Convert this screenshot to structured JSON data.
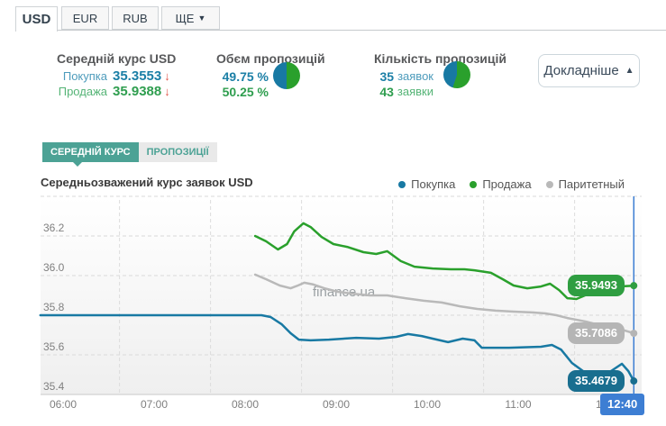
{
  "tabs": [
    {
      "label": "USD",
      "active": true
    },
    {
      "label": "EUR",
      "active": false
    },
    {
      "label": "RUB",
      "active": false
    },
    {
      "label": "ЩЕ",
      "caret": "▼",
      "active": false
    }
  ],
  "stats": {
    "avg": {
      "title": "Середній курс USD",
      "buy_label": "Покупка",
      "buy_value": "35.3553",
      "buy_trend": "↓",
      "sell_label": "Продажа",
      "sell_value": "35.9388",
      "sell_trend": "↓"
    },
    "volume": {
      "title": "Обєм пропозицій",
      "buy_pct": "49.75 %",
      "sell_pct": "50.25 %",
      "buy_share": 49.75,
      "sell_share": 50.25
    },
    "count": {
      "title": "Кількість пропозицій",
      "buy_num": "35",
      "buy_word": "заявок",
      "sell_num": "43",
      "sell_word": "заявки",
      "buy_share": 44.9,
      "sell_share": 55.1
    },
    "details_button": "Докладніше",
    "details_caret": "▲"
  },
  "subtabs": [
    {
      "label": "СЕРЕДНІЙ КУРС",
      "active": true
    },
    {
      "label": "ПРОПОЗИЦІЇ",
      "active": false
    }
  ],
  "watermark": "finance.ua",
  "colors": {
    "buy": "#1879a3",
    "sell": "#2aa02c",
    "parity": "#b9b9b9",
    "crosshair": "#3d7ed3",
    "red_arrow": "#e2574c",
    "teal": "#4ca295"
  },
  "chart_data": {
    "type": "line",
    "title": "Середньозважений курс заявок USD",
    "xlabel": "",
    "ylabel": "",
    "ylim": [
      35.35,
      36.42
    ],
    "grid": true,
    "legend_position": "top-right",
    "yticks": [
      35.4,
      35.6,
      35.8,
      36.0,
      36.2
    ],
    "ygrid": [
      35.6,
      35.8,
      36.0,
      36.2,
      36.4
    ],
    "baseline_value": 35.4,
    "xticks": [
      {
        "label": "06:00",
        "h": 6
      },
      {
        "label": "07:00",
        "h": 7
      },
      {
        "label": "08:00",
        "h": 8
      },
      {
        "label": "09:00",
        "h": 9
      },
      {
        "label": "10:00",
        "h": 10
      },
      {
        "label": "11:00",
        "h": 11
      },
      {
        "label": "12:00",
        "h": 12
      }
    ],
    "xgrid_hours": [
      6.62,
      7.62,
      8.62,
      9.62,
      10.62,
      11.62
    ],
    "legend": [
      {
        "label": "Покупка",
        "color": "#1879a3"
      },
      {
        "label": "Продажа",
        "color": "#2aa02c"
      },
      {
        "label": "Паритетный",
        "color": "#b9b9b9"
      }
    ],
    "series": [
      {
        "name": "buy",
        "label": "Покупка",
        "color": "#1879a3",
        "points": [
          [
            5.75,
            35.8
          ],
          [
            8.18,
            35.8
          ],
          [
            8.28,
            35.791
          ],
          [
            8.4,
            35.755
          ],
          [
            8.5,
            35.709
          ],
          [
            8.59,
            35.677
          ],
          [
            8.72,
            35.673
          ],
          [
            8.92,
            35.677
          ],
          [
            9.22,
            35.686
          ],
          [
            9.47,
            35.682
          ],
          [
            9.66,
            35.691
          ],
          [
            9.79,
            35.705
          ],
          [
            9.94,
            35.695
          ],
          [
            10.06,
            35.682
          ],
          [
            10.23,
            35.664
          ],
          [
            10.39,
            35.682
          ],
          [
            10.52,
            35.673
          ],
          [
            10.6,
            35.636
          ],
          [
            10.9,
            35.636
          ],
          [
            11.25,
            35.641
          ],
          [
            11.37,
            35.65
          ],
          [
            11.47,
            35.627
          ],
          [
            11.59,
            35.559
          ],
          [
            11.74,
            35.509
          ],
          [
            11.89,
            35.491
          ],
          [
            12.02,
            35.518
          ],
          [
            12.14,
            35.555
          ],
          [
            12.21,
            35.518
          ],
          [
            12.27,
            35.468
          ]
        ]
      },
      {
        "name": "sell",
        "label": "Продажа",
        "color": "#2aa02c",
        "points": [
          [
            8.11,
            36.2
          ],
          [
            8.23,
            36.173
          ],
          [
            8.36,
            36.132
          ],
          [
            8.46,
            36.159
          ],
          [
            8.54,
            36.223
          ],
          [
            8.64,
            36.264
          ],
          [
            8.72,
            36.245
          ],
          [
            8.84,
            36.195
          ],
          [
            8.97,
            36.159
          ],
          [
            9.12,
            36.145
          ],
          [
            9.3,
            36.118
          ],
          [
            9.44,
            36.109
          ],
          [
            9.56,
            36.123
          ],
          [
            9.71,
            36.073
          ],
          [
            9.86,
            36.045
          ],
          [
            10.06,
            36.036
          ],
          [
            10.26,
            36.032
          ],
          [
            10.41,
            36.032
          ],
          [
            10.52,
            36.027
          ],
          [
            10.7,
            36.014
          ],
          [
            10.83,
            35.982
          ],
          [
            10.95,
            35.95
          ],
          [
            11.1,
            35.936
          ],
          [
            11.25,
            35.945
          ],
          [
            11.35,
            35.959
          ],
          [
            11.45,
            35.927
          ],
          [
            11.54,
            35.886
          ],
          [
            11.64,
            35.882
          ],
          [
            11.76,
            35.905
          ],
          [
            11.94,
            35.936
          ],
          [
            12.09,
            35.945
          ],
          [
            12.27,
            35.949
          ]
        ]
      },
      {
        "name": "parity",
        "label": "Паритетный",
        "color": "#b9b9b9",
        "points": [
          [
            8.11,
            36.005
          ],
          [
            8.23,
            35.982
          ],
          [
            8.38,
            35.95
          ],
          [
            8.5,
            35.936
          ],
          [
            8.58,
            35.95
          ],
          [
            8.65,
            35.964
          ],
          [
            8.75,
            35.955
          ],
          [
            8.87,
            35.936
          ],
          [
            9.02,
            35.918
          ],
          [
            9.17,
            35.909
          ],
          [
            9.37,
            35.9
          ],
          [
            9.56,
            35.9
          ],
          [
            9.76,
            35.886
          ],
          [
            9.96,
            35.873
          ],
          [
            10.16,
            35.864
          ],
          [
            10.36,
            35.845
          ],
          [
            10.55,
            35.832
          ],
          [
            10.75,
            35.823
          ],
          [
            10.95,
            35.818
          ],
          [
            11.15,
            35.814
          ],
          [
            11.3,
            35.809
          ],
          [
            11.42,
            35.8
          ],
          [
            11.54,
            35.786
          ],
          [
            11.74,
            35.768
          ],
          [
            11.94,
            35.745
          ],
          [
            12.14,
            35.727
          ],
          [
            12.27,
            35.709
          ]
        ]
      }
    ],
    "end_labels": [
      {
        "text": "35.9493",
        "value": 35.9493,
        "color": "#2f9e41"
      },
      {
        "text": "35.7086",
        "value": 35.7086,
        "color": "#b5b5b5"
      },
      {
        "text": "35.4679",
        "value": 35.4679,
        "color": "#196e8f"
      }
    ],
    "crosshair": {
      "label": "12:40",
      "t": 12.27,
      "color": "#3d7ed3"
    }
  }
}
